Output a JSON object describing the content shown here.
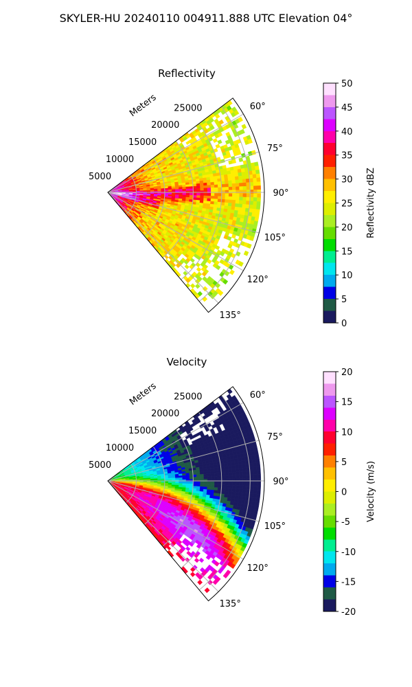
{
  "suptitle": "SKYLER-HU  20240110  004911.888 UTC Elevation 04°",
  "chart_data": [
    {
      "type": "heatmap",
      "projection": "polar-sector",
      "title": "Reflectivity",
      "range_label": "Meters",
      "range_ticks": [
        "5000",
        "10000",
        "15000",
        "20000",
        "25000"
      ],
      "angle_ticks": [
        "60°",
        "75°",
        "90°",
        "105°",
        "120°",
        "135°"
      ],
      "azimuth_range_deg": [
        53,
        140
      ],
      "range_max_m": 27500,
      "grid": true,
      "colorbar": {
        "label": "Reflectivity dBZ",
        "vmin": 0,
        "vmax": 50,
        "ticks": [
          "0",
          "5",
          "10",
          "15",
          "20",
          "25",
          "30",
          "35",
          "40",
          "45",
          "50"
        ],
        "stops": [
          "#1a1a5e",
          "#1f5a45",
          "#0000e6",
          "#00aaee",
          "#00e6ee",
          "#00ee90",
          "#00dd00",
          "#66dd00",
          "#aaee22",
          "#ddee00",
          "#ffee00",
          "#ffc000",
          "#ff8000",
          "#ff2000",
          "#ff0030",
          "#ff00aa",
          "#dd00ff",
          "#bb55ff",
          "#ee99ee",
          "#ffe0ff"
        ]
      }
    },
    {
      "type": "heatmap",
      "projection": "polar-sector",
      "title": "Velocity",
      "range_label": "Meters",
      "range_ticks": [
        "5000",
        "10000",
        "15000",
        "20000",
        "25000"
      ],
      "angle_ticks": [
        "60°",
        "75°",
        "90°",
        "105°",
        "120°",
        "135°"
      ],
      "azimuth_range_deg": [
        53,
        140
      ],
      "range_max_m": 27500,
      "grid": true,
      "colorbar": {
        "label": "Velocity (m/s)",
        "vmin": -20,
        "vmax": 20,
        "ticks": [
          "-20",
          "-15",
          "-10",
          "-5",
          "0",
          "5",
          "10",
          "15",
          "20"
        ],
        "stops": [
          "#1a1a5e",
          "#1f5a45",
          "#0000e6",
          "#00aaee",
          "#00e6ee",
          "#00ee90",
          "#00dd00",
          "#66dd00",
          "#aaee22",
          "#ddee00",
          "#ffee00",
          "#ffc000",
          "#ff8000",
          "#ff2000",
          "#ff0030",
          "#ff00aa",
          "#dd00ff",
          "#bb55ff",
          "#ee99ee",
          "#ffe0ff"
        ]
      }
    }
  ]
}
